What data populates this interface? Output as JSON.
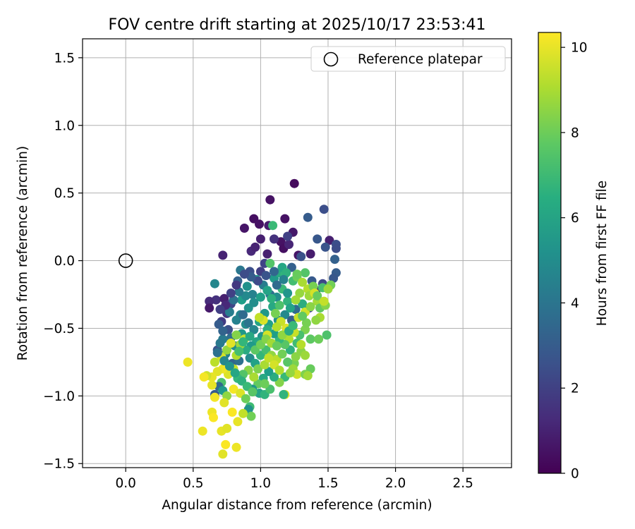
{
  "chart_data": {
    "type": "scatter",
    "title": "FOV centre drift starting at 2025/10/17 23:53:41",
    "xlabel": "Angular distance from reference (arcmin)",
    "ylabel": "Rotation from reference (arcmin)",
    "xlim": [
      -0.32,
      2.86
    ],
    "ylim": [
      -1.53,
      1.64
    ],
    "xticks": [
      0.0,
      0.5,
      1.0,
      1.5,
      2.0,
      2.5
    ],
    "xtick_labels": [
      "0.0",
      "0.5",
      "1.0",
      "1.5",
      "2.0",
      "2.5"
    ],
    "yticks": [
      -1.5,
      -1.0,
      -0.5,
      0.0,
      0.5,
      1.0,
      1.5
    ],
    "ytick_labels": [
      "−1.5",
      "−1.0",
      "−0.5",
      "0.0",
      "0.5",
      "1.0",
      "1.5"
    ],
    "grid": true,
    "legend": {
      "location": "top-right",
      "entries": [
        "Reference platepar"
      ]
    },
    "reference_point": {
      "x": 0.0,
      "y": 0.0,
      "label": "Reference platepar"
    },
    "colorbar": {
      "label": "Hours from first FF file",
      "range": [
        0,
        10.35
      ],
      "ticks": [
        0,
        2,
        4,
        6,
        8,
        10
      ],
      "tick_labels": [
        "0",
        "2",
        "4",
        "6",
        "8",
        "10"
      ],
      "colormap": "viridis"
    },
    "points": [
      [
        1.25,
        0.57,
        0.3
      ],
      [
        1.07,
        0.45,
        0.5
      ],
      [
        0.95,
        0.31,
        0.4
      ],
      [
        0.88,
        0.24,
        0.6
      ],
      [
        0.99,
        0.27,
        0.5
      ],
      [
        1.06,
        0.26,
        0.8
      ],
      [
        1.18,
        0.31,
        0.5
      ],
      [
        1.24,
        0.21,
        0.7
      ],
      [
        1.15,
        0.14,
        0.5
      ],
      [
        1.17,
        0.09,
        0.4
      ],
      [
        1.0,
        0.16,
        0.9
      ],
      [
        0.93,
        0.07,
        1.2
      ],
      [
        0.96,
        0.1,
        1.0
      ],
      [
        1.05,
        0.05,
        0.9
      ],
      [
        1.21,
        0.12,
        1.1
      ],
      [
        1.28,
        0.04,
        0.6
      ],
      [
        1.37,
        0.05,
        0.8
      ],
      [
        1.51,
        0.15,
        0.9
      ],
      [
        1.1,
        0.16,
        1.5
      ],
      [
        1.2,
        0.18,
        2.0
      ],
      [
        1.35,
        0.32,
        3.0
      ],
      [
        1.42,
        0.16,
        2.8
      ],
      [
        1.47,
        0.38,
        2.5
      ],
      [
        1.48,
        0.1,
        2.7
      ],
      [
        1.56,
        0.12,
        2.5
      ],
      [
        1.56,
        0.09,
        2.4
      ],
      [
        1.55,
        0.01,
        3.2
      ],
      [
        1.56,
        -0.09,
        3.0
      ],
      [
        1.54,
        -0.13,
        2.8
      ],
      [
        1.46,
        -0.17,
        2.2
      ],
      [
        1.38,
        -0.15,
        2.9
      ],
      [
        1.41,
        -0.22,
        1.6
      ],
      [
        1.36,
        -0.35,
        2.1
      ],
      [
        1.3,
        0.03,
        2.6
      ],
      [
        1.23,
        -0.05,
        3.2
      ],
      [
        1.03,
        -0.02,
        2.1
      ],
      [
        1.0,
        -0.08,
        1.9
      ],
      [
        0.92,
        -0.08,
        2.5
      ],
      [
        0.83,
        -0.15,
        3.2
      ],
      [
        0.85,
        -0.07,
        4.1
      ],
      [
        0.72,
        0.04,
        1.0
      ],
      [
        0.66,
        -0.17,
        4.8
      ],
      [
        0.67,
        -0.29,
        1.5
      ],
      [
        0.62,
        -0.3,
        1.3
      ],
      [
        0.62,
        -0.35,
        0.7
      ],
      [
        0.73,
        -0.28,
        0.9
      ],
      [
        0.75,
        -0.39,
        1.6
      ],
      [
        0.78,
        -0.32,
        2.2
      ],
      [
        0.71,
        -0.45,
        1.8
      ],
      [
        0.76,
        -0.51,
        2.6
      ],
      [
        0.78,
        -0.57,
        3.7
      ],
      [
        0.72,
        -0.58,
        4.3
      ],
      [
        0.68,
        -0.66,
        2.7
      ],
      [
        0.74,
        -0.69,
        4.5
      ],
      [
        0.79,
        -0.76,
        3.3
      ],
      [
        0.84,
        -0.74,
        3.8
      ],
      [
        0.81,
        -0.63,
        5.1
      ],
      [
        0.86,
        -0.54,
        5.5
      ],
      [
        0.89,
        -0.47,
        5.0
      ],
      [
        0.85,
        -0.4,
        4.7
      ],
      [
        0.91,
        -0.35,
        5.3
      ],
      [
        0.86,
        -0.29,
        5.8
      ],
      [
        0.94,
        -0.25,
        4.6
      ],
      [
        0.9,
        -0.19,
        5.2
      ],
      [
        0.97,
        -0.14,
        5.7
      ],
      [
        1.02,
        -0.18,
        4.4
      ],
      [
        1.07,
        -0.25,
        3.8
      ],
      [
        1.12,
        -0.27,
        5.1
      ],
      [
        1.09,
        -0.34,
        6.2
      ],
      [
        1.03,
        -0.39,
        5.5
      ],
      [
        0.99,
        -0.45,
        6.0
      ],
      [
        1.06,
        -0.47,
        5.9
      ],
      [
        1.13,
        -0.44,
        5.2
      ],
      [
        1.18,
        -0.4,
        4.9
      ],
      [
        1.23,
        -0.44,
        3.1
      ],
      [
        1.26,
        -0.36,
        3.6
      ],
      [
        1.31,
        -0.32,
        6.4
      ],
      [
        1.2,
        -0.3,
        6.7
      ],
      [
        1.16,
        -0.21,
        7.0
      ],
      [
        1.1,
        -0.13,
        5.6
      ],
      [
        1.14,
        -0.09,
        6.3
      ],
      [
        1.18,
        -0.1,
        6.8
      ],
      [
        1.24,
        -0.15,
        7.2
      ],
      [
        1.27,
        -0.12,
        8.0
      ],
      [
        1.33,
        -0.09,
        7.5
      ],
      [
        1.29,
        -0.24,
        8.7
      ],
      [
        1.35,
        -0.21,
        9.2
      ],
      [
        1.39,
        -0.19,
        8.2
      ],
      [
        1.42,
        -0.3,
        8.9
      ],
      [
        1.44,
        -0.35,
        7.8
      ],
      [
        1.48,
        -0.33,
        8.4
      ],
      [
        1.52,
        -0.18,
        8.1
      ],
      [
        1.44,
        -0.42,
        9.0
      ],
      [
        1.41,
        -0.44,
        8.6
      ],
      [
        1.33,
        -0.51,
        8.3
      ],
      [
        1.37,
        -0.58,
        7.7
      ],
      [
        1.43,
        -0.58,
        8.0
      ],
      [
        1.49,
        -0.55,
        7.4
      ],
      [
        1.29,
        -0.55,
        7.3
      ],
      [
        1.25,
        -0.53,
        9.5
      ],
      [
        1.21,
        -0.58,
        9.1
      ],
      [
        1.27,
        -0.61,
        7.1
      ],
      [
        1.3,
        -0.67,
        8.5
      ],
      [
        1.33,
        -0.7,
        8.8
      ],
      [
        1.37,
        -0.8,
        7.9
      ],
      [
        1.25,
        -0.76,
        8.2
      ],
      [
        1.22,
        -0.66,
        6.6
      ],
      [
        1.18,
        -0.62,
        7.6
      ],
      [
        1.14,
        -0.58,
        6.9
      ],
      [
        1.1,
        -0.54,
        5.8
      ],
      [
        1.05,
        -0.51,
        6.5
      ],
      [
        1.01,
        -0.56,
        5.4
      ],
      [
        0.97,
        -0.6,
        6.1
      ],
      [
        0.93,
        -0.63,
        5.6
      ],
      [
        0.89,
        -0.66,
        6.3
      ],
      [
        0.92,
        -0.72,
        5.0
      ],
      [
        0.96,
        -0.76,
        5.9
      ],
      [
        1.0,
        -0.7,
        6.8
      ],
      [
        1.04,
        -0.66,
        7.2
      ],
      [
        1.08,
        -0.7,
        8.6
      ],
      [
        1.12,
        -0.73,
        9.3
      ],
      [
        1.16,
        -0.69,
        8.1
      ],
      [
        1.2,
        -0.75,
        7.6
      ],
      [
        1.24,
        -0.8,
        8.8
      ],
      [
        1.27,
        -0.84,
        9.6
      ],
      [
        1.33,
        -0.84,
        8.3
      ],
      [
        1.18,
        -0.86,
        7.0
      ],
      [
        1.14,
        -0.9,
        8.4
      ],
      [
        1.1,
        -0.86,
        6.4
      ],
      [
        1.06,
        -0.82,
        5.7
      ],
      [
        1.02,
        -0.87,
        6.2
      ],
      [
        0.98,
        -0.91,
        7.8
      ],
      [
        0.94,
        -0.95,
        5.5
      ],
      [
        0.99,
        -0.98,
        6.0
      ],
      [
        1.03,
        -0.99,
        6.7
      ],
      [
        1.07,
        -0.95,
        7.3
      ],
      [
        1.03,
        -0.91,
        8.0
      ],
      [
        0.95,
        -0.86,
        9.0
      ],
      [
        0.91,
        -0.81,
        8.5
      ],
      [
        0.87,
        -0.84,
        7.5
      ],
      [
        0.83,
        -0.87,
        6.9
      ],
      [
        0.8,
        -0.8,
        9.4
      ],
      [
        0.76,
        -0.84,
        9.8
      ],
      [
        0.72,
        -0.8,
        10.1
      ],
      [
        0.68,
        -0.82,
        9.9
      ],
      [
        0.64,
        -0.86,
        10.0
      ],
      [
        0.6,
        -0.85,
        9.6
      ],
      [
        0.66,
        -0.75,
        9.3
      ],
      [
        0.71,
        -0.71,
        9.7
      ],
      [
        0.75,
        -0.66,
        8.7
      ],
      [
        0.82,
        -0.7,
        9.1
      ],
      [
        0.85,
        -0.62,
        8.8
      ],
      [
        0.88,
        -0.58,
        9.5
      ],
      [
        0.82,
        -0.55,
        8.4
      ],
      [
        0.78,
        -0.61,
        9.9
      ],
      [
        0.71,
        -0.9,
        7.4
      ],
      [
        0.69,
        -0.93,
        3.5
      ],
      [
        0.66,
        -0.99,
        2.9
      ],
      [
        0.72,
        -0.96,
        5.6
      ],
      [
        0.75,
        -1.0,
        8.6
      ],
      [
        0.8,
        -0.95,
        10.2
      ],
      [
        0.85,
        -0.98,
        9.8
      ],
      [
        0.89,
        -1.02,
        8.0
      ],
      [
        0.92,
        -1.08,
        7.1
      ],
      [
        0.91,
        -1.1,
        5.3
      ],
      [
        0.93,
        -1.15,
        8.1
      ],
      [
        0.87,
        -1.13,
        9.4
      ],
      [
        0.83,
        -1.19,
        10.0
      ],
      [
        0.79,
        -1.12,
        10.3
      ],
      [
        0.73,
        -1.05,
        9.9
      ],
      [
        0.66,
        -1.01,
        10.2
      ],
      [
        0.64,
        -1.12,
        10.1
      ],
      [
        0.65,
        -1.16,
        10.3
      ],
      [
        0.57,
        -1.26,
        10.1
      ],
      [
        0.71,
        -1.26,
        10.0
      ],
      [
        0.75,
        -1.24,
        9.9
      ],
      [
        0.74,
        -1.36,
        10.3
      ],
      [
        0.82,
        -1.38,
        10.1
      ],
      [
        0.72,
        -1.43,
        9.9
      ],
      [
        0.46,
        -0.75,
        10.1
      ],
      [
        0.58,
        -0.86,
        10.2
      ],
      [
        0.64,
        -0.92,
        10.0
      ],
      [
        1.18,
        -0.99,
        9.8
      ],
      [
        1.17,
        -0.99,
        6.7
      ],
      [
        1.35,
        -0.85,
        8.9
      ],
      [
        1.07,
        -0.02,
        7.5
      ],
      [
        1.09,
        0.26,
        7.0
      ],
      [
        1.16,
        -0.05,
        6.1
      ],
      [
        1.19,
        -0.09,
        6.6
      ],
      [
        1.27,
        -0.1,
        7.9
      ],
      [
        1.31,
        -0.16,
        9.0
      ],
      [
        1.36,
        -0.26,
        8.8
      ],
      [
        1.4,
        -0.24,
        9.7
      ],
      [
        1.26,
        -0.29,
        8.9
      ],
      [
        1.33,
        -0.38,
        9.6
      ],
      [
        1.28,
        -0.42,
        9.5
      ],
      [
        1.19,
        -0.5,
        9.8
      ],
      [
        1.15,
        -0.45,
        9.5
      ],
      [
        1.12,
        -0.49,
        9.2
      ],
      [
        1.05,
        -0.55,
        9.7
      ],
      [
        1.02,
        -0.44,
        9.8
      ],
      [
        0.99,
        -0.42,
        9.4
      ],
      [
        1.11,
        -0.39,
        8.2
      ],
      [
        1.14,
        -0.33,
        7.4
      ],
      [
        1.08,
        -0.28,
        6.5
      ],
      [
        1.05,
        -0.22,
        6.0
      ],
      [
        1.0,
        -0.27,
        5.8
      ],
      [
        0.95,
        -0.31,
        5.1
      ],
      [
        0.89,
        -0.26,
        4.9
      ],
      [
        0.84,
        -0.23,
        4.3
      ],
      [
        0.8,
        -0.29,
        3.9
      ],
      [
        0.77,
        -0.38,
        4.4
      ],
      [
        0.82,
        -0.44,
        4.6
      ],
      [
        0.87,
        -0.4,
        3.6
      ],
      [
        0.91,
        -0.46,
        4.0
      ],
      [
        0.95,
        -0.51,
        4.8
      ],
      [
        0.92,
        -0.56,
        6.2
      ],
      [
        0.87,
        -0.6,
        6.8
      ],
      [
        0.84,
        -0.67,
        7.2
      ],
      [
        0.96,
        -0.66,
        7.7
      ],
      [
        1.0,
        -0.62,
        8.1
      ],
      [
        1.04,
        -0.58,
        8.4
      ],
      [
        1.08,
        -0.61,
        8.9
      ],
      [
        1.12,
        -0.63,
        7.9
      ],
      [
        1.16,
        -0.55,
        8.6
      ],
      [
        1.21,
        -0.52,
        6.4
      ],
      [
        1.24,
        -0.48,
        7.0
      ],
      [
        1.22,
        -0.35,
        6.0
      ],
      [
        1.2,
        -0.24,
        5.4
      ],
      [
        1.17,
        -0.14,
        4.6
      ],
      [
        1.12,
        -0.18,
        3.6
      ],
      [
        1.1,
        -0.08,
        3.4
      ],
      [
        1.04,
        -0.11,
        2.7
      ],
      [
        0.98,
        -0.15,
        2.3
      ],
      [
        0.93,
        -0.12,
        3.0
      ],
      [
        0.88,
        -0.1,
        2.4
      ],
      [
        0.82,
        -0.18,
        1.7
      ],
      [
        0.78,
        -0.24,
        2.0
      ],
      [
        0.74,
        -0.33,
        1.2
      ],
      [
        0.7,
        -0.36,
        1.9
      ],
      [
        0.69,
        -0.47,
        3.0
      ],
      [
        0.72,
        -0.52,
        3.3
      ],
      [
        0.7,
        -0.61,
        4.2
      ],
      [
        0.68,
        -0.68,
        3.9
      ],
      [
        0.73,
        -0.74,
        4.8
      ],
      [
        0.77,
        -0.78,
        5.3
      ],
      [
        0.81,
        -0.83,
        6.1
      ],
      [
        0.86,
        -0.89,
        6.6
      ],
      [
        0.9,
        -0.93,
        7.0
      ],
      [
        0.94,
        -0.97,
        7.6
      ],
      [
        0.98,
        -0.8,
        8.3
      ],
      [
        1.03,
        -0.77,
        9.0
      ],
      [
        1.06,
        -0.72,
        9.4
      ],
      [
        1.1,
        -0.77,
        9.7
      ],
      [
        1.14,
        -0.81,
        9.1
      ],
      [
        1.22,
        -0.83,
        8.7
      ],
      [
        1.26,
        -0.71,
        8.5
      ],
      [
        1.3,
        -0.62,
        9.2
      ],
      [
        1.34,
        -0.46,
        8.2
      ],
      [
        1.31,
        -0.41,
        7.8
      ],
      [
        1.37,
        -0.34,
        8.5
      ],
      [
        1.42,
        -0.26,
        7.9
      ],
      [
        1.46,
        -0.2,
        7.3
      ],
      [
        1.5,
        -0.21,
        8.8
      ],
      [
        1.47,
        -0.3,
        9.4
      ]
    ]
  }
}
